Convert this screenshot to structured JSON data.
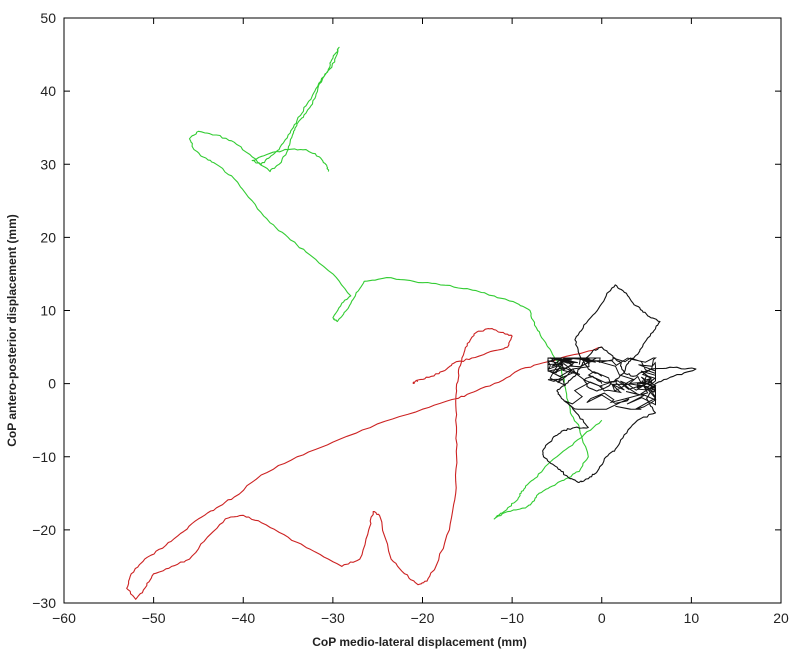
{
  "chart_data": {
    "type": "line",
    "title": "",
    "xlabel": "CoP medio-lateral displacement (mm)",
    "ylabel": "CoP antero-posterior displacement (mm)",
    "xlim": [
      -60,
      20
    ],
    "ylim": [
      -30,
      50
    ],
    "x_ticks": [
      -60,
      -50,
      -40,
      -30,
      -20,
      -10,
      0,
      10,
      20
    ],
    "y_ticks": [
      -30,
      -20,
      -10,
      0,
      10,
      20,
      30,
      40,
      50
    ],
    "x_tick_labels": [
      "−60",
      "−50",
      "−40",
      "−30",
      "−20",
      "−10",
      "0",
      "10",
      "20"
    ],
    "y_tick_labels": [
      "−30",
      "−20",
      "−10",
      "0",
      "10",
      "20",
      "30",
      "40",
      "50"
    ],
    "grid": false,
    "legend": "none",
    "series": [
      {
        "color": "#cc2222",
        "x": [
          0,
          -3,
          -6,
          -9,
          -11,
          -14,
          -16,
          -20,
          -25,
          -30,
          -34,
          -38,
          -41,
          -43,
          -45,
          -47,
          -49,
          -51,
          -52.5,
          -53,
          -52,
          -51,
          -50,
          -48,
          -46,
          -44,
          -42,
          -40,
          -38,
          -35,
          -32,
          -29,
          -27,
          -26,
          -25.5,
          -24.8,
          -23.5,
          -22,
          -20.5,
          -19.5,
          -18.5,
          -17,
          -16.3,
          -16.2,
          -16.3,
          -16.2,
          -16,
          -15.6,
          -15,
          -14,
          -12.5,
          -11,
          -10,
          -10.5,
          -12,
          -14.5,
          -16.5,
          -17.5,
          -19,
          -20.5,
          -21,
          -21
        ],
        "y": [
          5,
          4,
          3,
          2,
          0.5,
          -1,
          -2,
          -3.5,
          -5.5,
          -8,
          -10,
          -12.5,
          -15.5,
          -17,
          -18.5,
          -20.5,
          -22.5,
          -24,
          -26,
          -28,
          -29.5,
          -28,
          -26,
          -25,
          -24,
          -21,
          -18.5,
          -18,
          -19,
          -21,
          -23,
          -25,
          -24,
          -20,
          -17.5,
          -18,
          -24,
          -26,
          -27.5,
          -27,
          -25,
          -20,
          -15,
          -10,
          -5,
          -1,
          1.5,
          3.5,
          5.5,
          7,
          7.5,
          7,
          6.5,
          5,
          4.5,
          3.5,
          2.8,
          1.8,
          1,
          0.5,
          0.2,
          0
        ]
      },
      {
        "color": "#33cc33",
        "x": [
          0,
          -2,
          -4,
          -6,
          -7.5,
          -8.5,
          -9,
          -9.5,
          -10.5,
          -11.5,
          -12,
          -10.5,
          -8.5,
          -7.5,
          -7,
          -5.5,
          -4,
          -2.5,
          -1.5,
          -2.5,
          -3.5,
          -4,
          -4.5,
          -5.5,
          -6.5,
          -7.5,
          -8,
          -9.5,
          -12,
          -15,
          -18,
          -21,
          -24,
          -26.5,
          -27.5,
          -28.5,
          -29.5,
          -30,
          -29,
          -28,
          -30,
          -33,
          -35,
          -37,
          -39,
          -41,
          -43,
          -44.5,
          -45.5,
          -46,
          -45,
          -43,
          -41,
          -39,
          -37,
          -36,
          -35,
          -34.5,
          -34,
          -33,
          -32,
          -31.5,
          -30.5,
          -30,
          -29.3,
          -29.8,
          -31,
          -32,
          -33,
          -34,
          -35,
          -36,
          -37,
          -38,
          -39,
          -37,
          -35,
          -33,
          -31.5,
          -30.8,
          -30.5
        ],
        "y": [
          -5,
          -7,
          -9,
          -11,
          -13,
          -14,
          -15,
          -16,
          -17,
          -18,
          -18.5,
          -17.5,
          -17,
          -16,
          -15,
          -14,
          -13,
          -12,
          -10,
          -6,
          -4,
          -1,
          2,
          4,
          6,
          8,
          10,
          11,
          12,
          13,
          13.5,
          14,
          14.5,
          14,
          12,
          10,
          8.5,
          9,
          11,
          12,
          15,
          18,
          20,
          22,
          25,
          28,
          30,
          31,
          32,
          33.5,
          34.5,
          34,
          33,
          31,
          29,
          30,
          32,
          34,
          35.5,
          37,
          39,
          41,
          43,
          44.5,
          46,
          44,
          42,
          40,
          38,
          36,
          34,
          32,
          31,
          30,
          30.5,
          31.5,
          32,
          32,
          31,
          30,
          29
        ]
      },
      {
        "color": "#111111",
        "x": [
          0,
          -1.5,
          -2.5,
          -3,
          -2,
          -0.5,
          0.5,
          1.5,
          2.5,
          3.5,
          4.5,
          5.5,
          6.5,
          6,
          5,
          4,
          3,
          2.5,
          3.5,
          5.5,
          8,
          10.5,
          8,
          6,
          5,
          6,
          4,
          2.5,
          1.5,
          0.5,
          -0.5,
          -1.5,
          -2.5,
          -3.5,
          -4.5,
          -5.5,
          -6.5,
          -6.5,
          -5.5,
          -4.5,
          -3,
          -1.5,
          -2.5,
          -3.5,
          -4.5,
          -5,
          -4,
          -3,
          -2.5,
          -2,
          -1,
          0,
          1,
          2,
          2.5,
          1.5,
          0.5,
          -0.5,
          -1.5,
          -2,
          -1,
          0
        ],
        "y": [
          1,
          2,
          4,
          6,
          8,
          10,
          12,
          13.5,
          12.5,
          11,
          10,
          9,
          8.5,
          7.5,
          6,
          4,
          3,
          1.5,
          1,
          2,
          2.2,
          2,
          1,
          0,
          -2,
          -4,
          -5,
          -7,
          -9,
          -10,
          -12,
          -13,
          -13.5,
          -13,
          -12,
          -11,
          -10,
          -9,
          -7.5,
          -6.5,
          -6,
          -6,
          -4.5,
          -3,
          -2,
          -1,
          0,
          1,
          2,
          3,
          4.5,
          5,
          4,
          3,
          1.5,
          0.5,
          -0.5,
          -1,
          -0.5,
          0.5,
          1,
          0
        ]
      }
    ]
  }
}
